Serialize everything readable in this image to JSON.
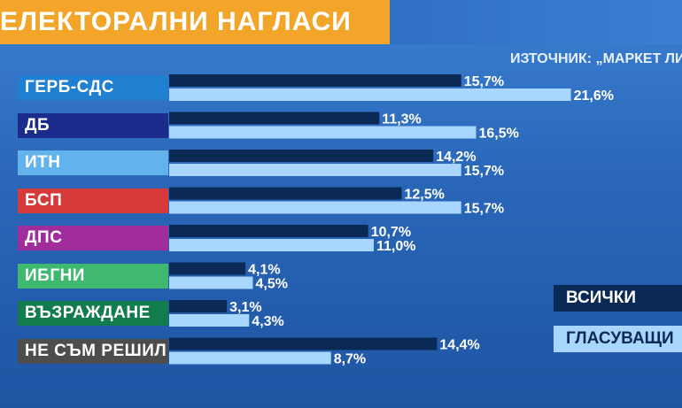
{
  "header": {
    "title": "ЕЛЕКТОРАЛНИ НАГЛАСИ",
    "source": "ИЗТОЧНИК: „МАРКЕТ ЛИ"
  },
  "colors": {
    "series_all": "#0a2a55",
    "series_voting": "#a9d6ff",
    "title_bg": "#f3a52a"
  },
  "chart_data": {
    "type": "bar",
    "orientation": "horizontal",
    "categories": [
      "ГЕРБ-СДС",
      "ДБ",
      "ИТН",
      "БСП",
      "ДПС",
      "ИБГНИ",
      "ВЪЗРАЖДАНЕ",
      "НЕ СЪМ РЕШИЛ"
    ],
    "category_colors": [
      "#1f7fd0",
      "#1c2c8c",
      "#62b2ec",
      "#d63a3a",
      "#a12c9c",
      "#3fb870",
      "#137c4c",
      "#4d4d4d"
    ],
    "series": [
      {
        "name": "ВСИЧКИ",
        "values": [
          15.7,
          11.3,
          14.2,
          12.5,
          10.7,
          4.1,
          3.1,
          14.4
        ],
        "labels": [
          "15,7%",
          "11,3%",
          "14,2%",
          "12,5%",
          "10,7%",
          "4,1%",
          "3,1%",
          "14,4%"
        ]
      },
      {
        "name": "ГЛАСУВАЩИ",
        "values": [
          21.6,
          16.5,
          15.7,
          15.7,
          11.0,
          4.5,
          4.3,
          8.7
        ],
        "labels": [
          "21,6%",
          "16,5%",
          "15,7%",
          "15,7%",
          "11,0%",
          "4,5%",
          "4,3%",
          "8,7%"
        ]
      }
    ],
    "legend": {
      "position": "right",
      "items": [
        "ВСИЧКИ",
        "ГЛАСУВАЩИ"
      ]
    }
  }
}
